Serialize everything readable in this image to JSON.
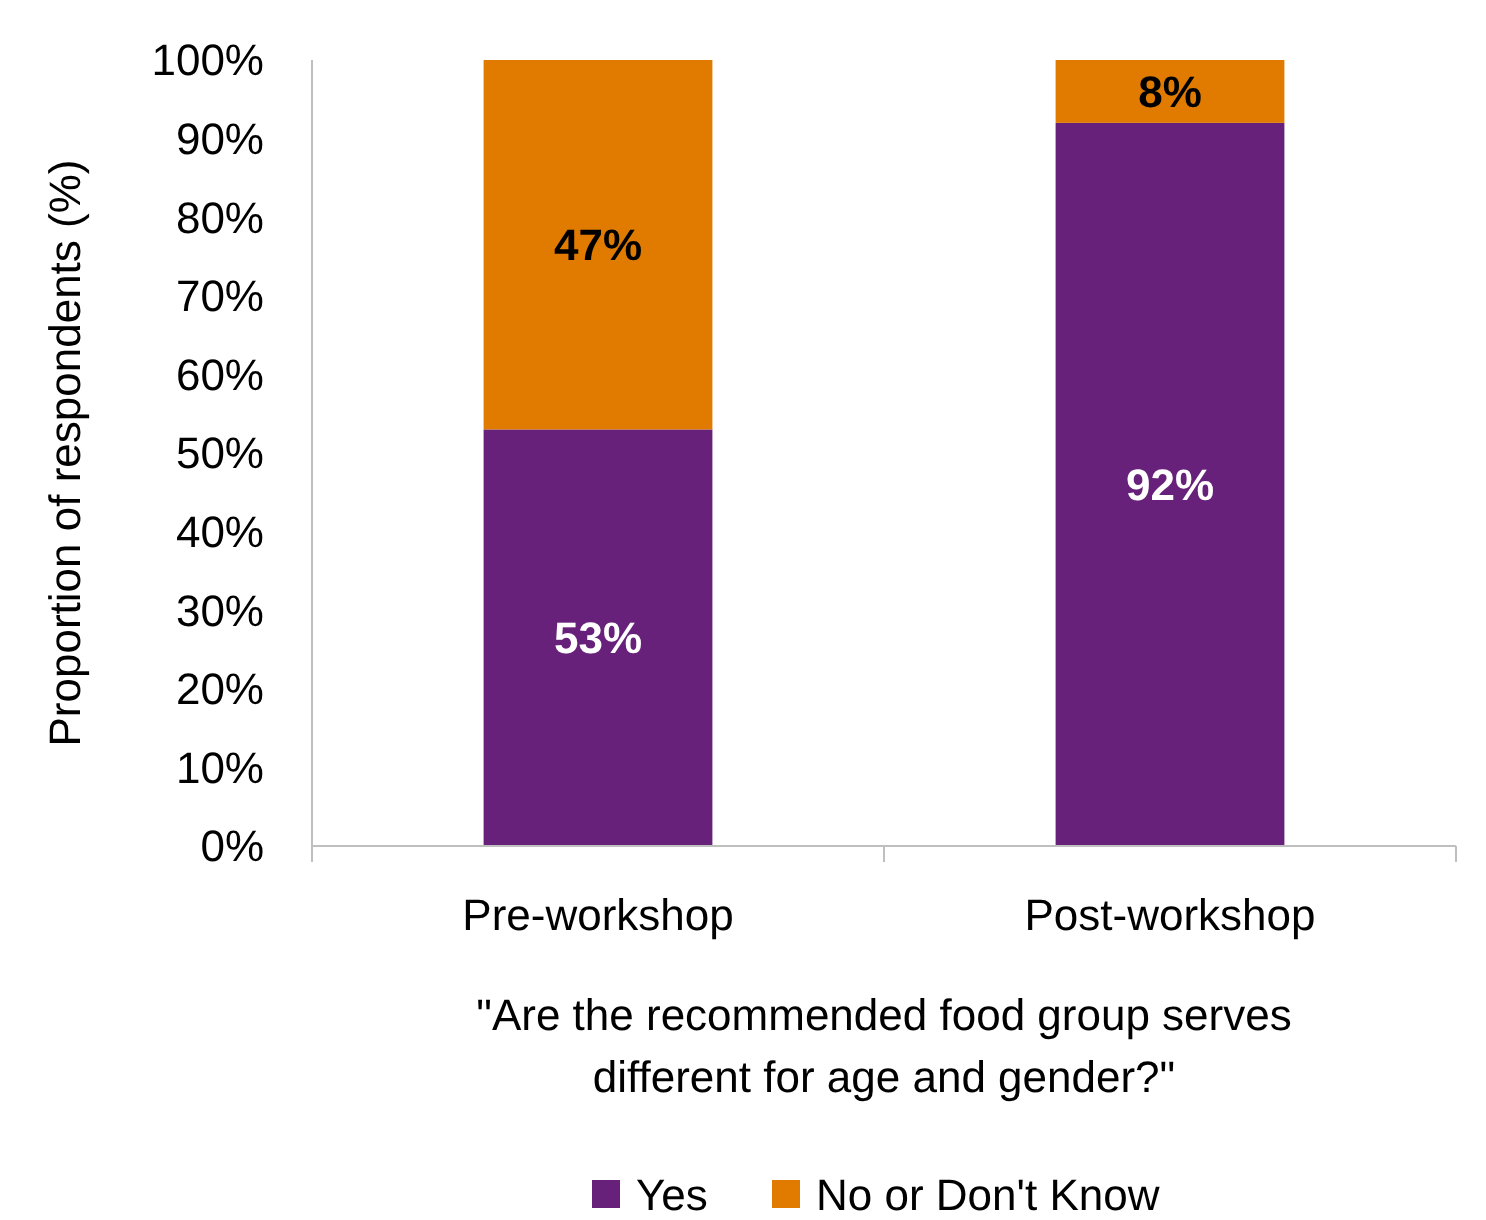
{
  "chart_data": {
    "type": "bar",
    "stacked": true,
    "categories": [
      "Pre-workshop",
      "Post-workshop"
    ],
    "series": [
      {
        "name": "Yes",
        "color": "#68217a",
        "values": [
          53,
          92
        ],
        "value_labels": [
          "53%",
          "92%"
        ]
      },
      {
        "name": "No or Don't Know",
        "color": "#e07b00",
        "values": [
          47,
          8
        ],
        "value_labels": [
          "47%",
          "8%"
        ]
      }
    ],
    "ylabel": "Proportion of respondents (%)",
    "xlabel": "\"Are the recommended food group serves different for age and gender?\"",
    "ylim": [
      0,
      100
    ],
    "yticks": [
      {
        "value": 0,
        "label": "0%"
      },
      {
        "value": 10,
        "label": "10%"
      },
      {
        "value": 20,
        "label": "20%"
      },
      {
        "value": 30,
        "label": "30%"
      },
      {
        "value": 40,
        "label": "40%"
      },
      {
        "value": 50,
        "label": "50%"
      },
      {
        "value": 60,
        "label": "60%"
      },
      {
        "value": 70,
        "label": "70%"
      },
      {
        "value": 80,
        "label": "80%"
      },
      {
        "value": 90,
        "label": "90%"
      },
      {
        "value": 100,
        "label": "100%"
      }
    ],
    "grid": false,
    "legend": "bottom"
  }
}
